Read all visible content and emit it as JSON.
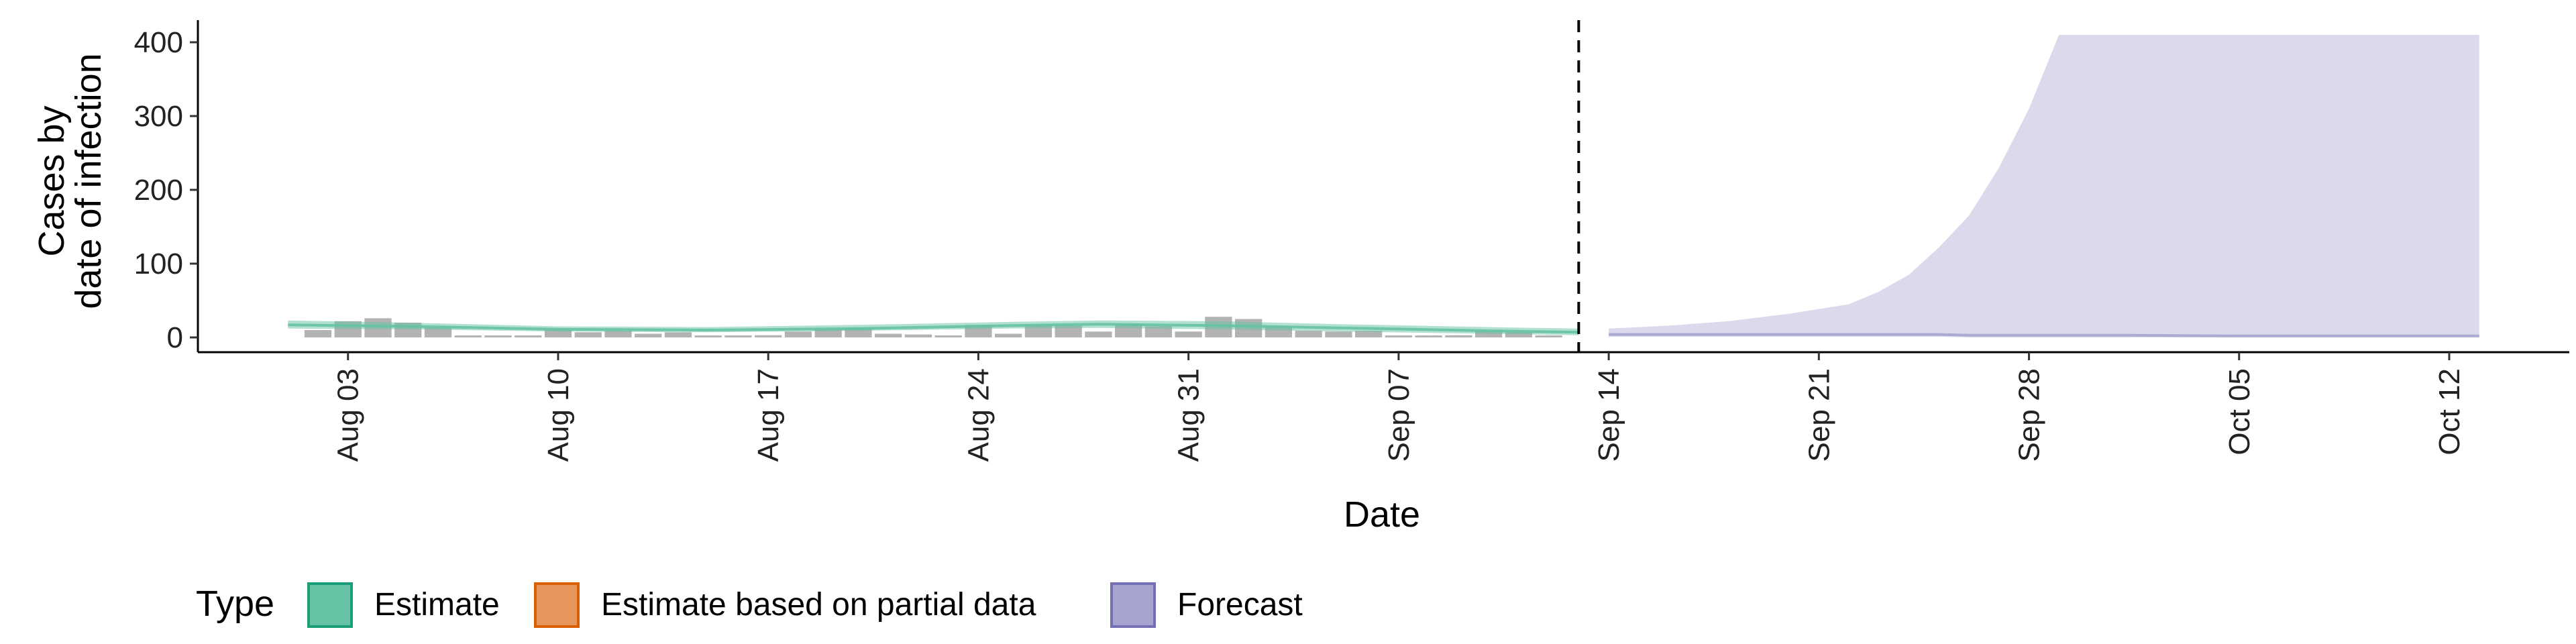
{
  "chart_data": {
    "type": "area",
    "title": "",
    "xlabel": "Date",
    "ylabel_lines": [
      "Cases by",
      "date of infection"
    ],
    "ylim": [
      -20,
      430
    ],
    "xlim": [
      "2020-07-29",
      "2020-10-16"
    ],
    "y_ticks": [
      0,
      100,
      200,
      300,
      400
    ],
    "y_tick_labels": [
      "0",
      "100",
      "200",
      "300",
      "400"
    ],
    "x_ticks": [
      "2020-08-03",
      "2020-08-10",
      "2020-08-17",
      "2020-08-24",
      "2020-08-31",
      "2020-09-07",
      "2020-09-14",
      "2020-09-21",
      "2020-09-28",
      "2020-10-05",
      "2020-10-12"
    ],
    "x_tick_labels": [
      "Aug 03",
      "Aug 10",
      "Aug 17",
      "Aug 24",
      "Aug 31",
      "Sep 07",
      "Sep 14",
      "Sep 21",
      "Sep 28",
      "Oct 05",
      "Oct 12"
    ],
    "forecast_start": "2020-09-13",
    "reported_cases": {
      "dates": [
        "2020-08-02",
        "2020-08-03",
        "2020-08-04",
        "2020-08-05",
        "2020-08-06",
        "2020-08-07",
        "2020-08-08",
        "2020-08-09",
        "2020-08-10",
        "2020-08-11",
        "2020-08-12",
        "2020-08-13",
        "2020-08-14",
        "2020-08-15",
        "2020-08-16",
        "2020-08-17",
        "2020-08-18",
        "2020-08-19",
        "2020-08-20",
        "2020-08-21",
        "2020-08-22",
        "2020-08-23",
        "2020-08-24",
        "2020-08-25",
        "2020-08-26",
        "2020-08-27",
        "2020-08-28",
        "2020-08-29",
        "2020-08-30",
        "2020-08-31",
        "2020-09-01",
        "2020-09-02",
        "2020-09-03",
        "2020-09-04",
        "2020-09-05",
        "2020-09-06",
        "2020-09-07",
        "2020-09-08",
        "2020-09-09",
        "2020-09-10",
        "2020-09-11",
        "2020-09-12"
      ],
      "values": [
        10,
        22,
        26,
        20,
        13,
        2,
        1,
        1,
        11,
        7,
        9,
        5,
        7,
        2,
        1,
        3,
        8,
        11,
        13,
        5,
        4,
        2,
        17,
        5,
        17,
        16,
        8,
        18,
        15,
        8,
        28,
        25,
        15,
        9,
        8,
        9,
        2,
        1,
        3,
        9,
        7,
        2
      ]
    },
    "series": [
      {
        "name": "Estimate",
        "color": "#1b9e77",
        "fill": "#66c2a5",
        "dates": [
          "2020-08-01",
          "2020-08-05",
          "2020-08-10",
          "2020-08-15",
          "2020-08-20",
          "2020-08-25",
          "2020-08-28",
          "2020-09-01",
          "2020-09-05",
          "2020-09-10",
          "2020-09-13"
        ],
        "median": [
          17,
          15,
          11,
          10,
          12,
          16,
          18,
          16,
          13,
          9,
          7
        ],
        "lower": [
          12,
          11,
          8,
          7,
          9,
          12,
          13,
          11,
          8,
          5,
          3
        ],
        "upper": [
          23,
          20,
          15,
          14,
          17,
          21,
          23,
          22,
          18,
          14,
          12
        ]
      },
      {
        "name": "Estimate based on partial data",
        "color": "#d95f02",
        "fill": "#e7975c",
        "dates": [],
        "median": [],
        "lower": [],
        "upper": []
      },
      {
        "name": "Forecast",
        "color": "#7570b3",
        "fill": "#a6a3d0",
        "dates": [
          "2020-09-14",
          "2020-09-16",
          "2020-09-18",
          "2020-09-20",
          "2020-09-22",
          "2020-09-23",
          "2020-09-24",
          "2020-09-25",
          "2020-09-26",
          "2020-09-27",
          "2020-09-28",
          "2020-09-29",
          "2020-10-01",
          "2020-10-05",
          "2020-10-10",
          "2020-10-13"
        ],
        "median": [
          4,
          4,
          4,
          4,
          4,
          4,
          4,
          4,
          3,
          3,
          3,
          3,
          3,
          2,
          2,
          2
        ],
        "lower": [
          1,
          1,
          1,
          1,
          1,
          1,
          1,
          1,
          0,
          0,
          0,
          0,
          0,
          0,
          0,
          0
        ],
        "upper": [
          12,
          16,
          22,
          32,
          45,
          62,
          85,
          122,
          165,
          230,
          310,
          410,
          410,
          410,
          410,
          410
        ]
      }
    ],
    "legend": {
      "title": "Type",
      "position": "bottom",
      "items": [
        {
          "label": "Estimate",
          "fill": "#66c2a5",
          "stroke": "#1b9e77"
        },
        {
          "label": "Estimate based on partial data",
          "fill": "#e7975c",
          "stroke": "#d95f02"
        },
        {
          "label": "Forecast",
          "fill": "#a6a3d0",
          "stroke": "#7570b3"
        }
      ]
    }
  }
}
